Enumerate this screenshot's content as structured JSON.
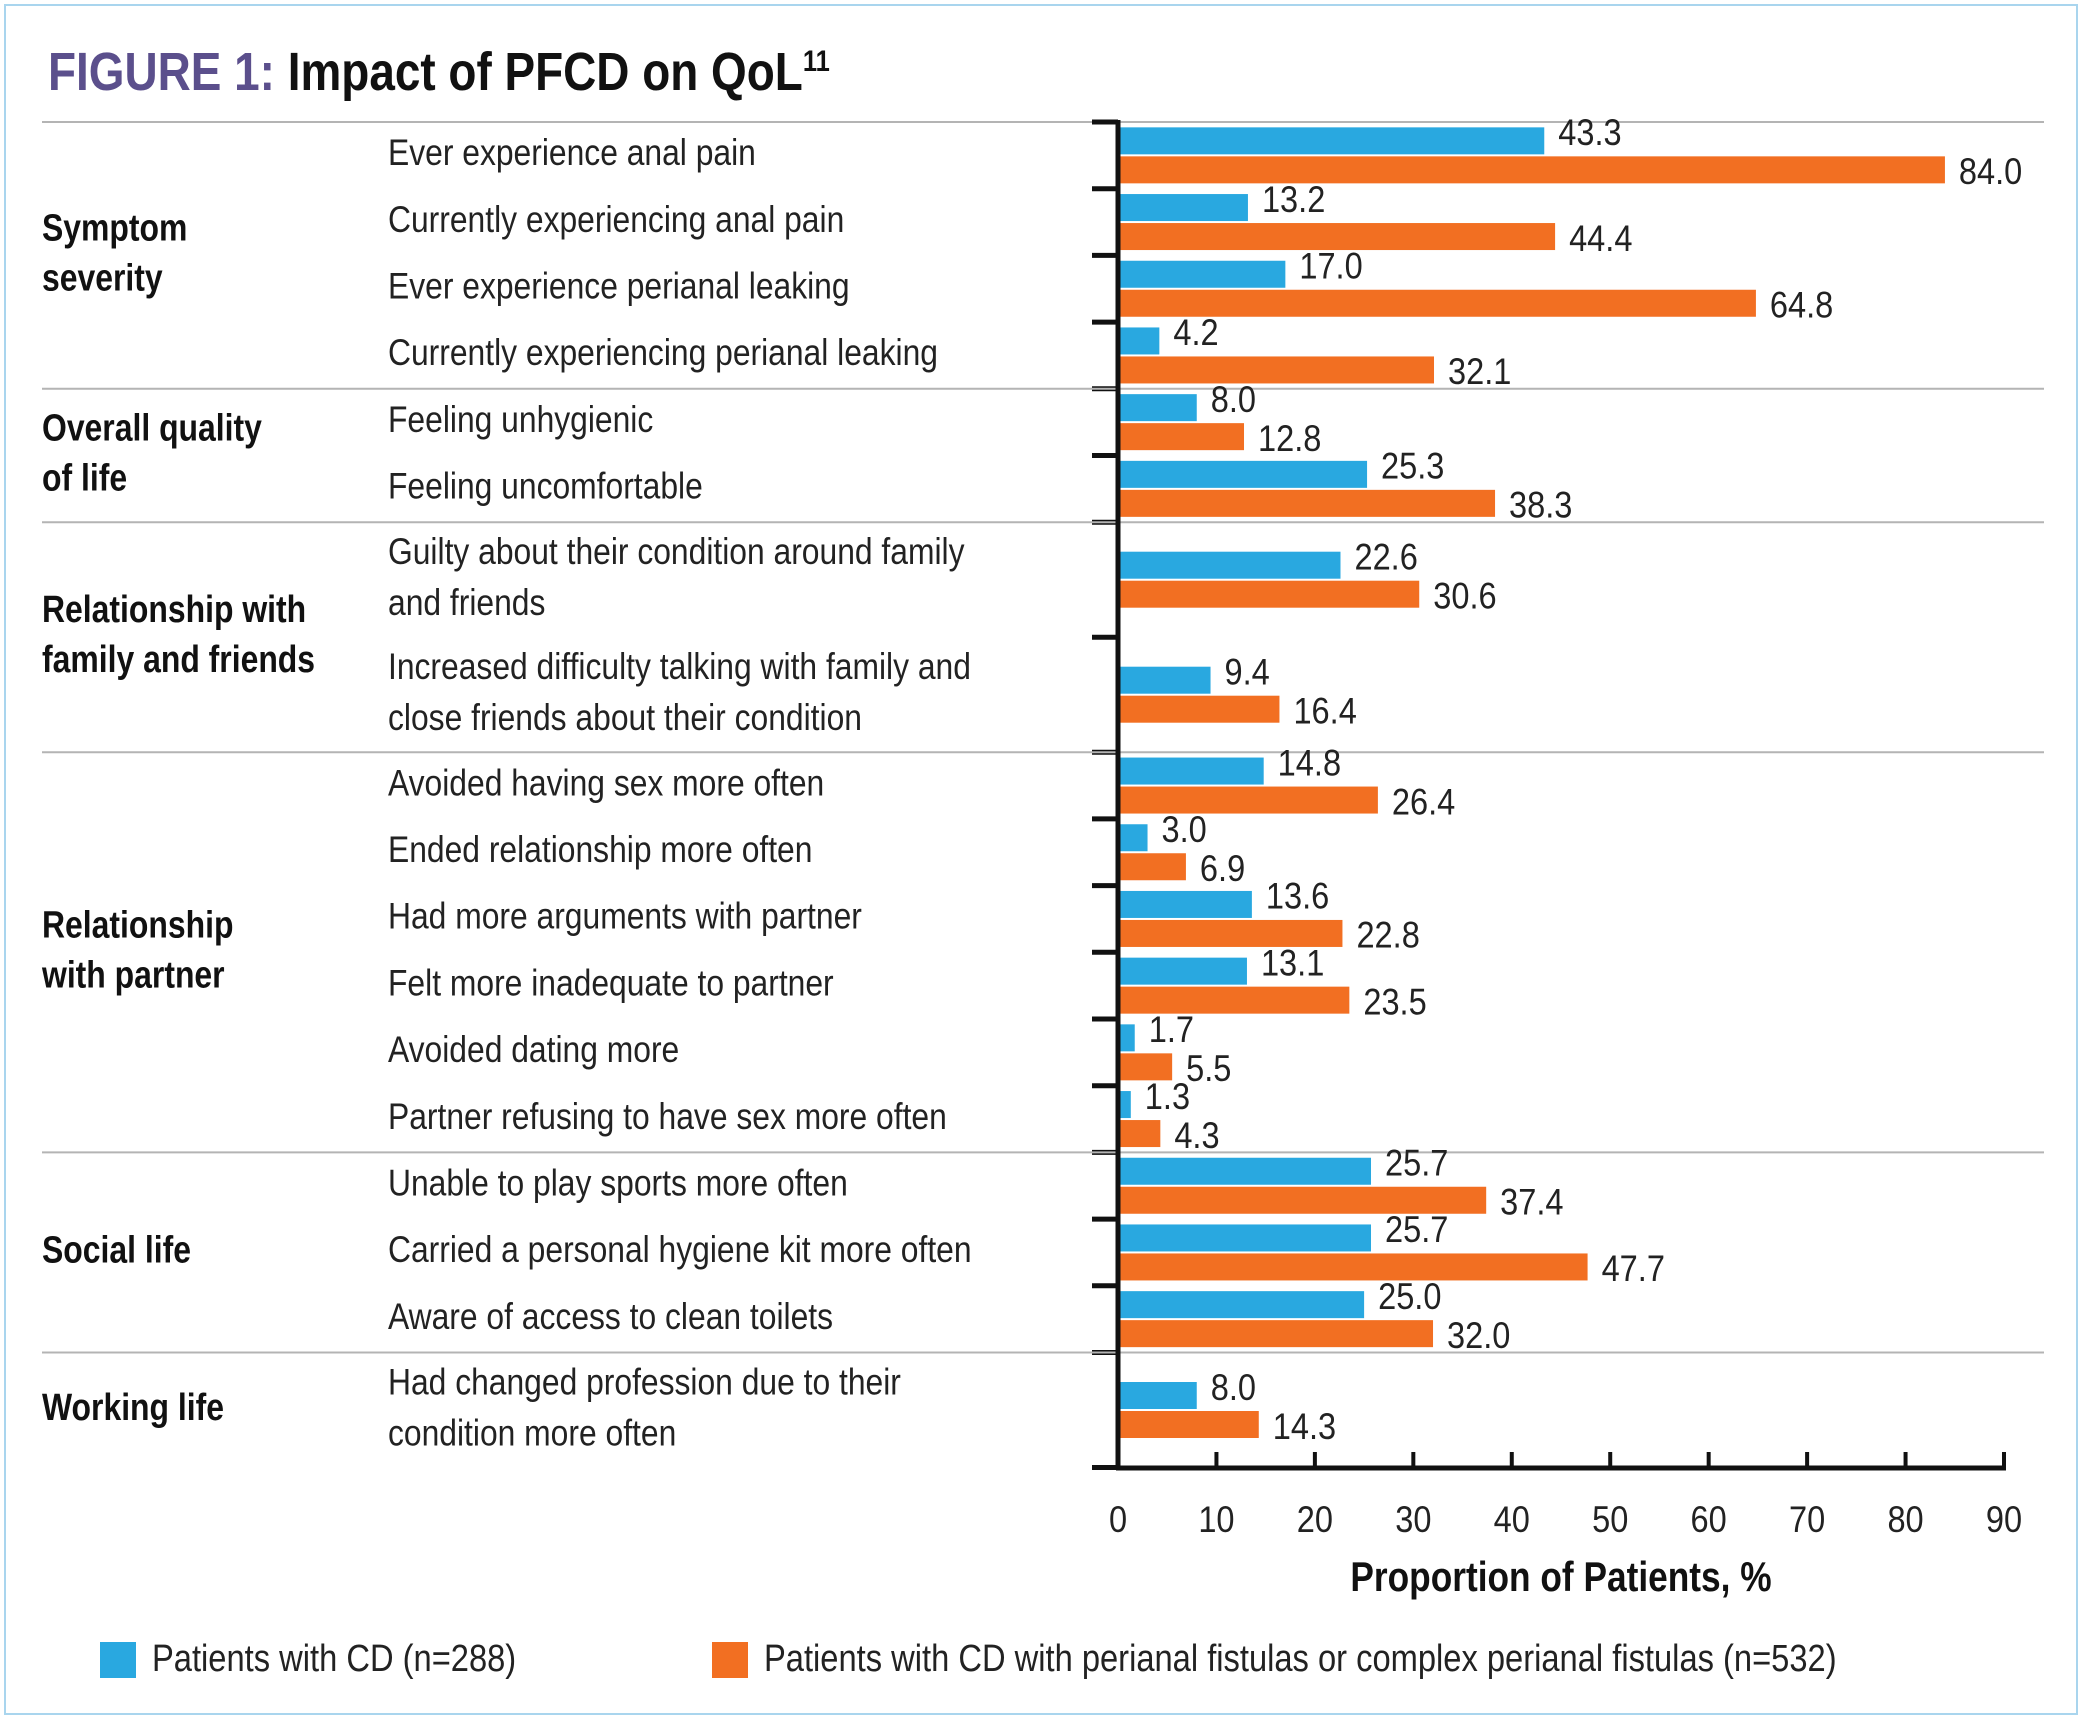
{
  "title": {
    "prefix": "FIGURE 1:",
    "text": "Impact of PFCD on QoL",
    "superscript": "11"
  },
  "colors": {
    "cd": "#29a8e0",
    "pf": "#f26f22",
    "divider": "#b4b4b4",
    "axis": "#111111",
    "title_accent": "#5b4f8c",
    "frame": "#a9d5ee"
  },
  "chart_data": {
    "type": "bar",
    "orientation": "horizontal",
    "title": "Impact of PFCD on QoL",
    "xlabel": "Proportion of Patients, %",
    "ylabel": "",
    "xlim": [
      0,
      90
    ],
    "xticks": [
      0,
      10,
      20,
      30,
      40,
      50,
      60,
      70,
      80,
      90
    ],
    "grid": false,
    "legend_position": "bottom",
    "series": [
      {
        "name": "Patients with CD (n=288)",
        "key": "cd"
      },
      {
        "name": "Patients with CD with perianal fistulas or complex perianal fistulas (n=532)",
        "key": "pf"
      }
    ],
    "groups": [
      {
        "name": [
          "Symptom",
          "severity"
        ],
        "items": [
          {
            "label": [
              "Ever experience anal pain"
            ],
            "cd": "43.3",
            "pf": "84.0"
          },
          {
            "label": [
              "Currently experiencing anal pain"
            ],
            "cd": "13.2",
            "pf": "44.4"
          },
          {
            "label": [
              "Ever experience perianal leaking"
            ],
            "cd": "17.0",
            "pf": "64.8"
          },
          {
            "label": [
              "Currently experiencing perianal leaking"
            ],
            "cd": "4.2",
            "pf": "32.1"
          }
        ]
      },
      {
        "name": [
          "Overall quality",
          "of life"
        ],
        "items": [
          {
            "label": [
              "Feeling unhygienic"
            ],
            "cd": "8.0",
            "pf": "12.8"
          },
          {
            "label": [
              "Feeling uncomfortable"
            ],
            "cd": "25.3",
            "pf": "38.3"
          }
        ]
      },
      {
        "name": [
          "Relationship with",
          "family and friends"
        ],
        "items": [
          {
            "label": [
              "Guilty about their condition around family",
              "and friends"
            ],
            "cd": "22.6",
            "pf": "30.6"
          },
          {
            "label": [
              "Increased difficulty talking with family and",
              "close friends about their condition"
            ],
            "cd": "9.4",
            "pf": "16.4"
          }
        ]
      },
      {
        "name": [
          "Relationship",
          "with partner"
        ],
        "items": [
          {
            "label": [
              "Avoided having sex more often"
            ],
            "cd": "14.8",
            "pf": "26.4"
          },
          {
            "label": [
              "Ended relationship more often"
            ],
            "cd": "3.0",
            "pf": "6.9"
          },
          {
            "label": [
              "Had more arguments with partner"
            ],
            "cd": "13.6",
            "pf": "22.8"
          },
          {
            "label": [
              "Felt more inadequate to partner"
            ],
            "cd": "13.1",
            "pf": "23.5"
          },
          {
            "label": [
              "Avoided dating more"
            ],
            "cd": "1.7",
            "pf": "5.5"
          },
          {
            "label": [
              "Partner refusing to have sex more often"
            ],
            "cd": "1.3",
            "pf": "4.3"
          }
        ]
      },
      {
        "name": [
          "Social life"
        ],
        "items": [
          {
            "label": [
              "Unable to play sports more often"
            ],
            "cd": "25.7",
            "pf": "37.4"
          },
          {
            "label": [
              "Carried a personal hygiene kit more often"
            ],
            "cd": "25.7",
            "pf": "47.7"
          },
          {
            "label": [
              "Aware of access to clean toilets"
            ],
            "cd": "25.0",
            "pf": "32.0"
          }
        ]
      },
      {
        "name": [
          "Working life"
        ],
        "items": [
          {
            "label": [
              "Had changed profession due to their",
              "condition more often"
            ],
            "cd": "8.0",
            "pf": "14.3"
          }
        ]
      }
    ]
  }
}
